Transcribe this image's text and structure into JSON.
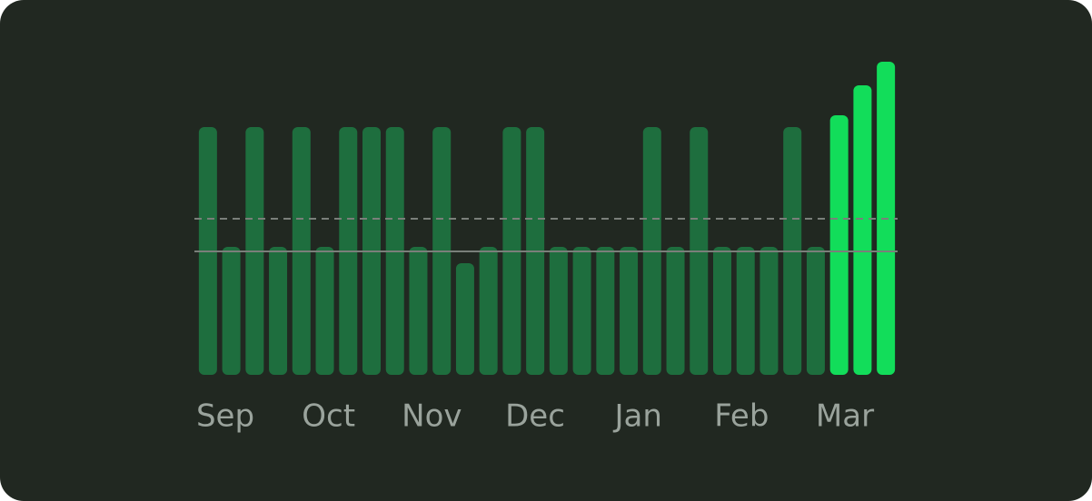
{
  "chart_data": {
    "type": "bar",
    "month_labels": [
      "Sep",
      "Oct",
      "Nov",
      "Dec",
      "Jan",
      "Feb",
      "Mar"
    ],
    "values": [
      273,
      141,
      273,
      141,
      273,
      141,
      273,
      273,
      273,
      141,
      273,
      123,
      141,
      273,
      273,
      141,
      141,
      141,
      141,
      273,
      141,
      273,
      141,
      141,
      141,
      273,
      141,
      286,
      319,
      345
    ],
    "colors": [
      "#1e6e3e",
      "#1e6e3e",
      "#1e6e3e",
      "#1e6e3e",
      "#1e6e3e",
      "#1e6e3e",
      "#1e6e3e",
      "#1e6e3e",
      "#1e6e3e",
      "#1e6e3e",
      "#1e6e3e",
      "#1e6e3e",
      "#1e6e3e",
      "#1e6e3e",
      "#1e6e3e",
      "#1e6e3e",
      "#1e6e3e",
      "#1e6e3e",
      "#1e6e3e",
      "#1e6e3e",
      "#1e6e3e",
      "#1e6e3e",
      "#1e6e3e",
      "#1e6e3e",
      "#1e6e3e",
      "#1e6e3e",
      "#1e6e3e",
      "#12dd5a",
      "#12dd5a",
      "#12dd5a"
    ],
    "ylim": [
      0,
      350
    ],
    "reference_lines": [
      {
        "value": 172,
        "style": "dashed"
      },
      {
        "value": 136,
        "style": "solid"
      }
    ]
  }
}
